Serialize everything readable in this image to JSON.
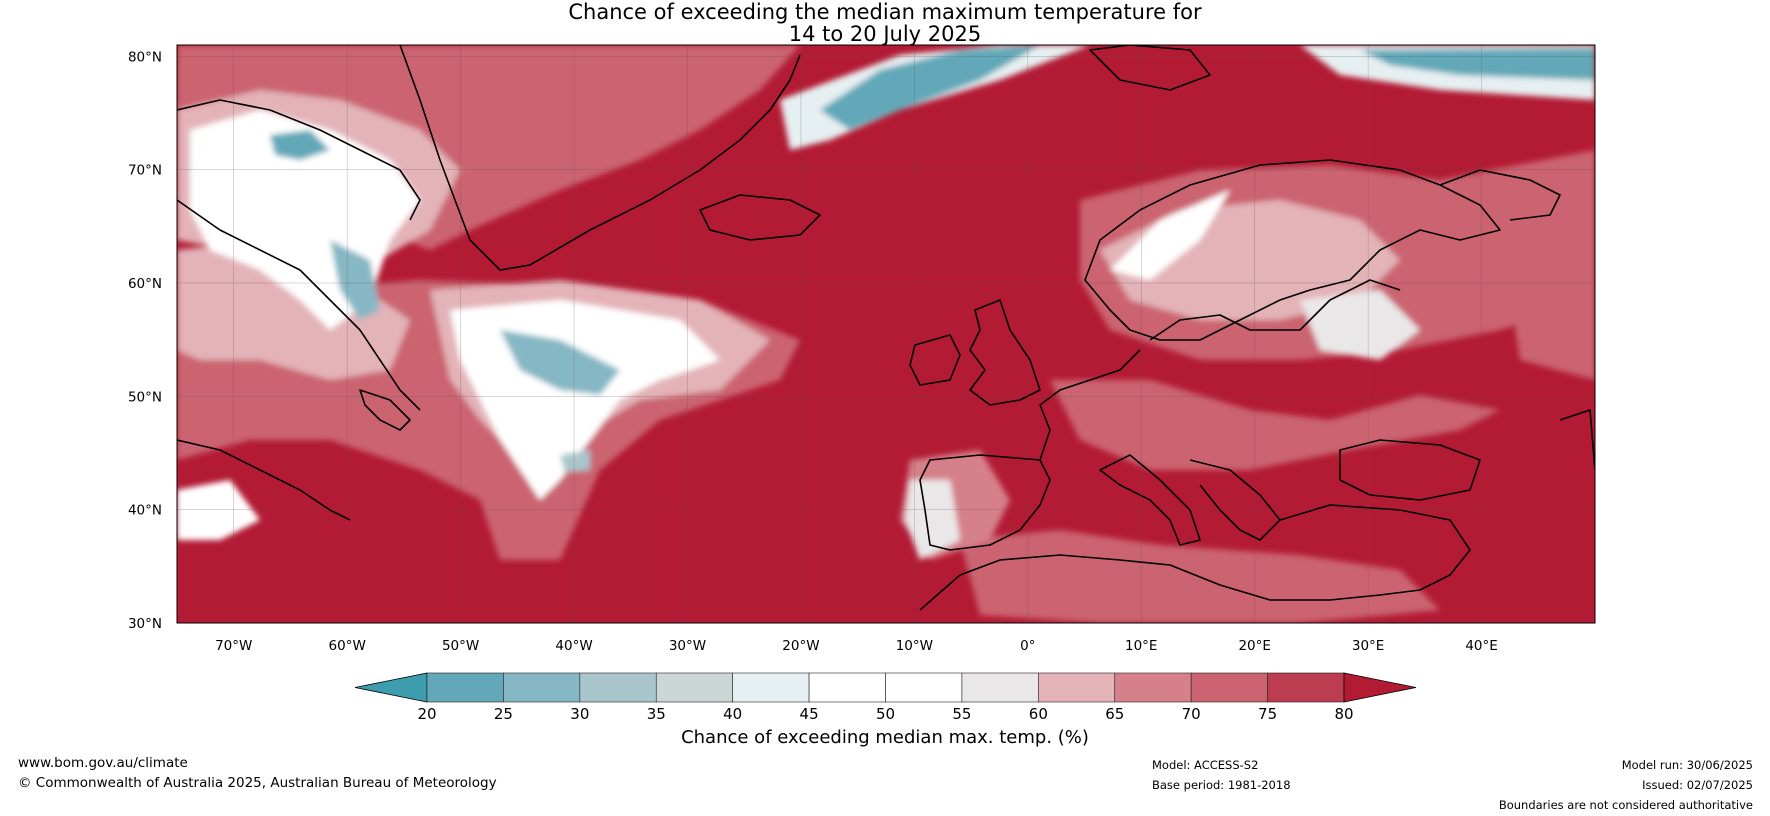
{
  "title": {
    "line1": "Chance of exceeding the median maximum temperature for",
    "line2": "14 to 20 July 2025"
  },
  "map": {
    "lon_range": [
      -75,
      50
    ],
    "lat_range": [
      30,
      81
    ],
    "lat_ticks": [
      {
        "value": 80,
        "label": "80°N"
      },
      {
        "value": 70,
        "label": "70°N"
      },
      {
        "value": 60,
        "label": "60°N"
      },
      {
        "value": 50,
        "label": "50°N"
      },
      {
        "value": 40,
        "label": "40°N"
      },
      {
        "value": 30,
        "label": "30°N"
      }
    ],
    "lon_ticks": [
      {
        "value": -70,
        "label": "70°W"
      },
      {
        "value": -60,
        "label": "60°W"
      },
      {
        "value": -50,
        "label": "50°W"
      },
      {
        "value": -40,
        "label": "40°W"
      },
      {
        "value": -30,
        "label": "30°W"
      },
      {
        "value": -20,
        "label": "20°W"
      },
      {
        "value": -10,
        "label": "10°W"
      },
      {
        "value": 0,
        "label": "0°"
      },
      {
        "value": 10,
        "label": "10°E"
      },
      {
        "value": 20,
        "label": "20°E"
      },
      {
        "value": 30,
        "label": "30°E"
      },
      {
        "value": 40,
        "label": "40°E"
      }
    ],
    "background_color": "#b31b34"
  },
  "colorbar": {
    "label": "Chance of exceeding median max. temp. (%)",
    "ticks": [
      "20",
      "25",
      "30",
      "35",
      "40",
      "45",
      "50",
      "55",
      "60",
      "65",
      "70",
      "75",
      "80"
    ],
    "under_color": "#3d9cae",
    "over_color": "#b31b34",
    "segment_colors": [
      "#62a8b8",
      "#86b7c4",
      "#a9c6cc",
      "#cbd6d7",
      "#e6eff1",
      "#ffffff",
      "#ffffff",
      "#eae7e8",
      "#e3b3b8",
      "#d68089",
      "#cb6470",
      "#bc3d4f"
    ]
  },
  "footer": {
    "website": "www.bom.gov.au/climate",
    "copyright": "© Commonwealth of Australia 2025, Australian Bureau of Meteorology",
    "model": "Model: ACCESS-S2",
    "base_period": "Base period: 1981-2018",
    "model_run": "Model run: 30/06/2025",
    "issued": "Issued: 02/07/2025",
    "disclaimer": "Boundaries are not considered authoritative"
  }
}
